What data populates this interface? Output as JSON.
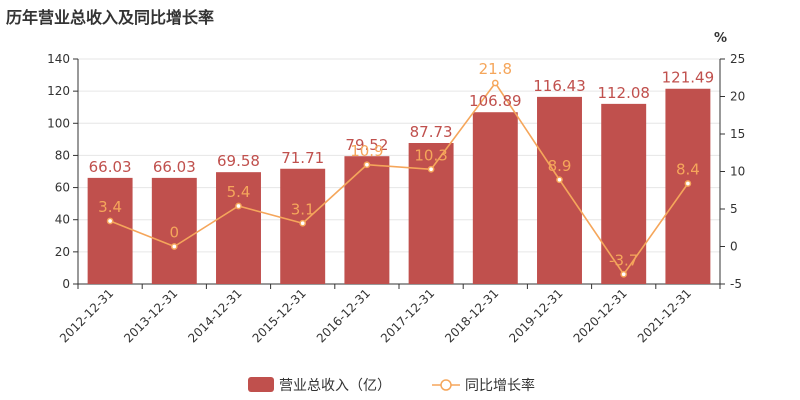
{
  "chart_data": {
    "type": "bar",
    "title": "历年营业总收入及同比增长率",
    "categories": [
      "2012-12-31",
      "2013-12-31",
      "2014-12-31",
      "2015-12-31",
      "2016-12-31",
      "2017-12-31",
      "2018-12-31",
      "2019-12-31",
      "2020-12-31",
      "2021-12-31"
    ],
    "series": [
      {
        "name": "营业总收入（亿）",
        "type": "bar",
        "axis": "left",
        "color": "#c0504d",
        "values": [
          66.03,
          66.03,
          69.58,
          71.71,
          79.52,
          87.73,
          106.89,
          116.43,
          112.08,
          121.49
        ]
      },
      {
        "name": "同比增长率",
        "type": "line",
        "axis": "right",
        "color": "#f5a65b",
        "values": [
          3.4,
          0,
          5.4,
          3.1,
          10.9,
          10.3,
          21.8,
          8.9,
          -3.7,
          8.4
        ]
      }
    ],
    "y_left": {
      "min": 0,
      "max": 140,
      "ticks": [
        0,
        20,
        40,
        60,
        80,
        100,
        120,
        140
      ]
    },
    "y_right": {
      "min": -5,
      "max": 25,
      "ticks": [
        -5,
        0,
        5,
        10,
        15,
        20,
        25
      ],
      "unit": "%"
    },
    "legend_position": "bottom-center",
    "grid": true
  }
}
